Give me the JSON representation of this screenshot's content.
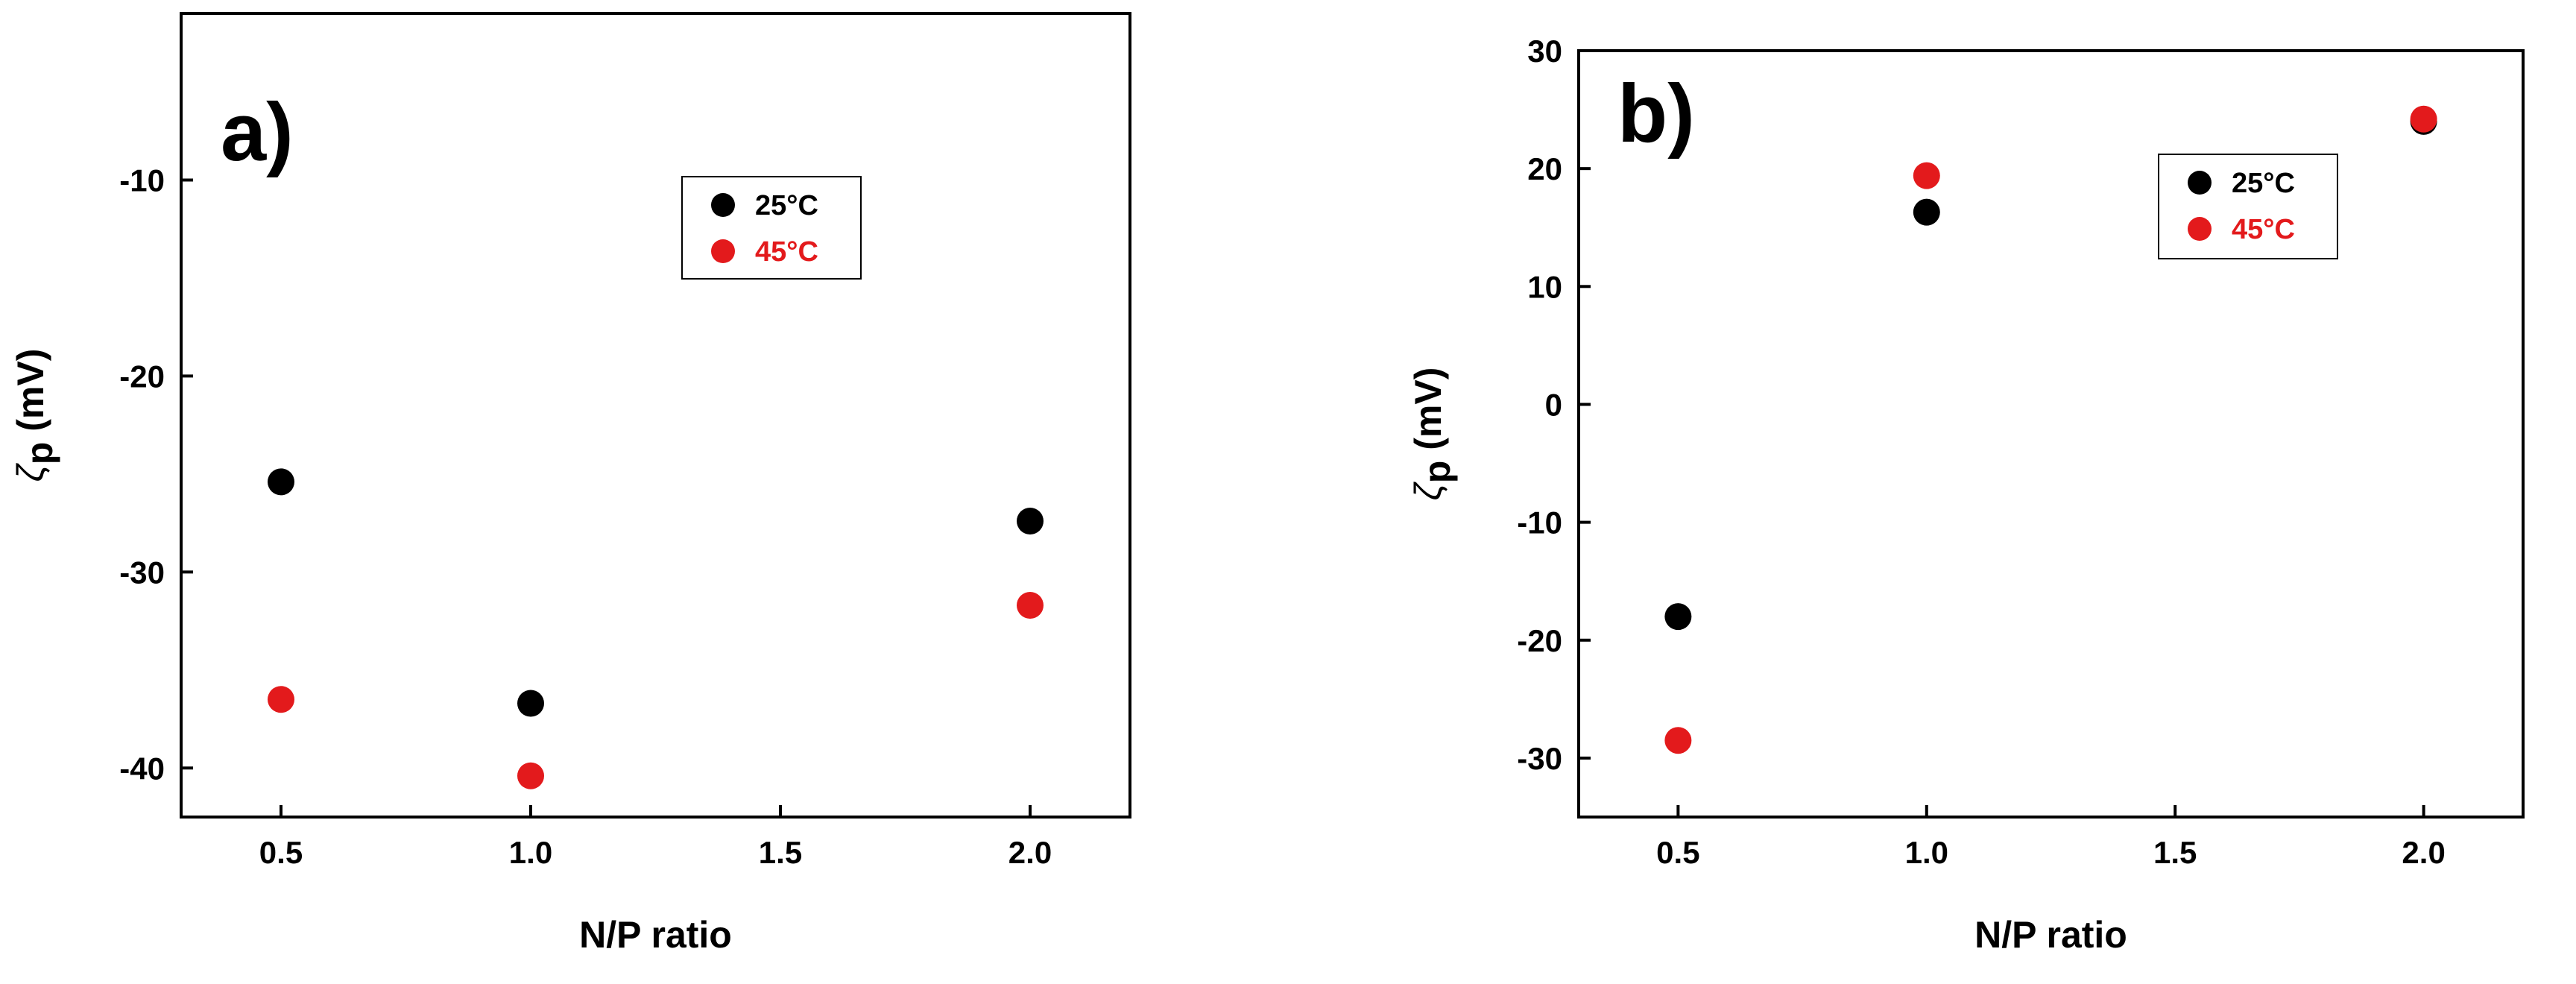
{
  "chart_data": [
    {
      "panel_label": "a)",
      "type": "scatter",
      "xlabel": "N/P ratio",
      "ylabel_main": "ζ",
      "ylabel_sub": "p",
      "ylabel_unit": " (mV)",
      "xlim": [
        0.3,
        2.2
      ],
      "ylim": [
        -42.5,
        -1.5
      ],
      "xticks": [
        0.5,
        1.0,
        1.5,
        2.0
      ],
      "xtick_labels": [
        "0.5",
        "1.0",
        "1.5",
        "2.0"
      ],
      "yticks": [
        -40,
        -30,
        -20,
        -10
      ],
      "ytick_labels": [
        "-40",
        "-30",
        "-20",
        "-10"
      ],
      "legend_position": "top-right",
      "series": [
        {
          "name": "25°C",
          "color": "#000000",
          "x": [
            0.5,
            1.0,
            2.0
          ],
          "y": [
            -25.4,
            -36.7,
            -27.4
          ]
        },
        {
          "name": "45°C",
          "color": "#e31a1c",
          "x": [
            0.5,
            1.0,
            2.0
          ],
          "y": [
            -36.5,
            -40.4,
            -31.7
          ]
        }
      ]
    },
    {
      "panel_label": "b)",
      "type": "scatter",
      "xlabel": "N/P ratio",
      "ylabel_main": "ζ",
      "ylabel_sub": "p",
      "ylabel_unit": " (mV)",
      "xlim": [
        0.3,
        2.2
      ],
      "ylim": [
        -35,
        30
      ],
      "xticks": [
        0.5,
        1.0,
        1.5,
        2.0
      ],
      "xtick_labels": [
        "0.5",
        "1.0",
        "1.5",
        "2.0"
      ],
      "yticks": [
        -30,
        -20,
        -10,
        0,
        10,
        20,
        30
      ],
      "ytick_labels": [
        "-30",
        "-20",
        "-10",
        "0",
        "10",
        "20",
        "30"
      ],
      "legend_position": "top-right",
      "series": [
        {
          "name": "25°C",
          "color": "#000000",
          "x": [
            0.5,
            1.0,
            2.0
          ],
          "y": [
            -18.0,
            16.3,
            24.0
          ]
        },
        {
          "name": "45°C",
          "color": "#e31a1c",
          "x": [
            0.5,
            1.0,
            2.0
          ],
          "y": [
            -28.5,
            19.4,
            24.2
          ]
        }
      ]
    }
  ]
}
